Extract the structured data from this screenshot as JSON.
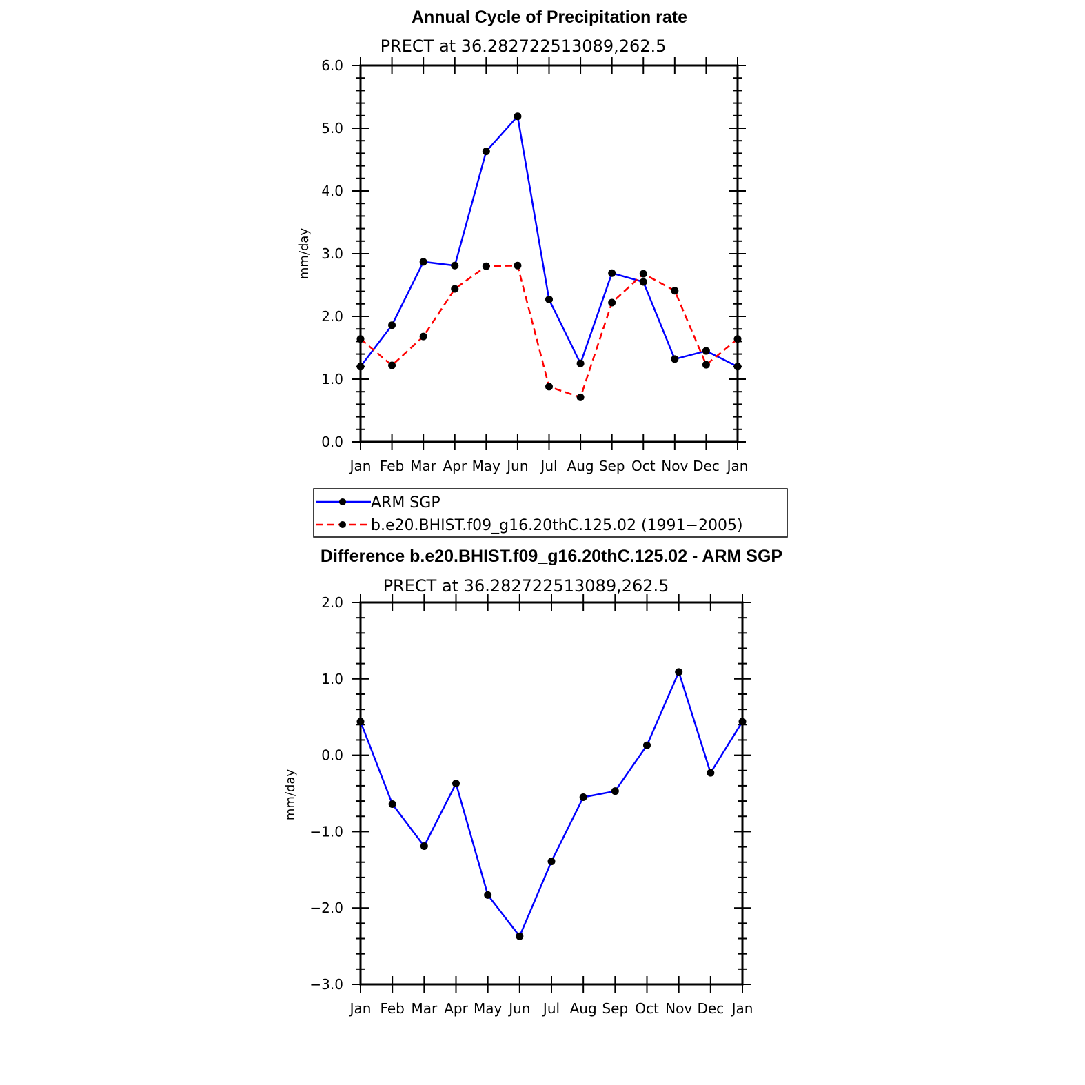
{
  "chart_data": [
    {
      "type": "line",
      "title": "Annual Cycle of Precipitation rate",
      "subtitle": "PRECT at 36.282722513089,262.5",
      "xlabel": "",
      "ylabel": "mm/day",
      "ylim": [
        0,
        6
      ],
      "yticks": [
        "0.0",
        "1.0",
        "2.0",
        "3.0",
        "4.0",
        "5.0",
        "6.0"
      ],
      "categories": [
        "Jan",
        "Feb",
        "Mar",
        "Apr",
        "May",
        "Jun",
        "Jul",
        "Aug",
        "Sep",
        "Oct",
        "Nov",
        "Dec",
        "Jan"
      ],
      "series": [
        {
          "name": "ARM SGP",
          "color": "#0000ff",
          "dash": "solid",
          "values": [
            1.2,
            1.86,
            2.87,
            2.81,
            4.63,
            5.19,
            2.27,
            1.25,
            2.69,
            2.55,
            1.32,
            1.45,
            1.2
          ]
        },
        {
          "name": "b.e20.BHIST.f09_g16.20thC.125.02 (1991-2005)",
          "color": "#ff0000",
          "dash": "dashed",
          "values": [
            1.64,
            1.22,
            1.68,
            2.44,
            2.8,
            2.81,
            0.88,
            0.71,
            2.22,
            2.68,
            2.41,
            1.23,
            1.64
          ]
        }
      ],
      "legend": [
        "ARM SGP",
        "b.e20.BHIST.f09_g16.20thC.125.02 (1991−2005)"
      ]
    },
    {
      "type": "line",
      "title": "Difference b.e20.BHIST.f09_g16.20thC.125.02 - ARM SGP",
      "subtitle": "PRECT at 36.282722513089,262.5",
      "xlabel": "",
      "ylabel": "mm/day",
      "ylim": [
        -3,
        2
      ],
      "yticks": [
        "−3.0",
        "−2.0",
        "−1.0",
        "0.0",
        "1.0",
        "2.0"
      ],
      "categories": [
        "Jan",
        "Feb",
        "Mar",
        "Apr",
        "May",
        "Jun",
        "Jul",
        "Aug",
        "Sep",
        "Oct",
        "Nov",
        "Dec",
        "Jan"
      ],
      "series": [
        {
          "name": "Difference",
          "color": "#0000ff",
          "dash": "solid",
          "values": [
            0.44,
            -0.64,
            -1.19,
            -0.37,
            -1.83,
            -2.37,
            -1.39,
            -0.55,
            -0.47,
            0.13,
            1.09,
            -0.23,
            0.44
          ]
        }
      ]
    }
  ]
}
